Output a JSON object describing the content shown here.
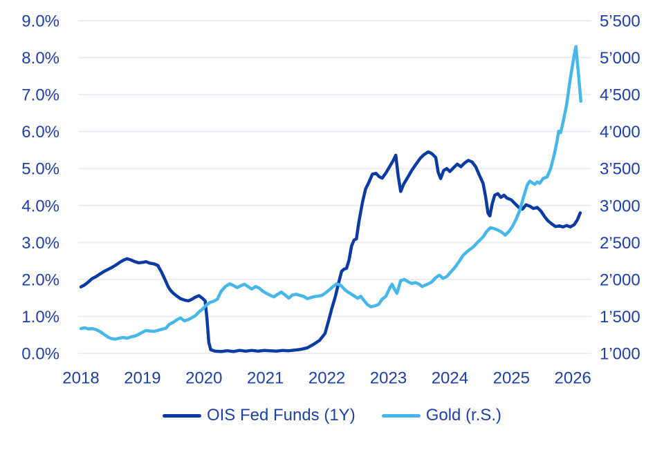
{
  "colors": {
    "axis_text": "#1e40a8",
    "gridline": "#e9edf4",
    "ois_line": "#0c3aa3",
    "gold_line": "#47b6e8",
    "background": "#ffffff"
  },
  "chart_data": {
    "type": "line",
    "title": "",
    "grid": "horizontal",
    "legend_position": "bottom",
    "x_axis": {
      "tick_labels": [
        "2018",
        "2019",
        "2020",
        "2021",
        "2022",
        "2023",
        "2024",
        "2025",
        "2026"
      ],
      "range": [
        2017.95,
        2026.3
      ]
    },
    "y_axis_left": {
      "tick_labels": [
        "9.0%",
        "8.0%",
        "7.0%",
        "6.0%",
        "5.0%",
        "4.0%",
        "3.0%",
        "2.0%",
        "1.0%",
        "0.0%"
      ],
      "range": [
        0,
        9
      ],
      "unit": "percent"
    },
    "y_axis_right": {
      "tick_labels": [
        "5’500",
        "5’000",
        "4’500",
        "4’000",
        "3’500",
        "3’000",
        "2’500",
        "2’000",
        "1’500",
        "1’000"
      ],
      "range": [
        1000,
        5500
      ]
    },
    "series": [
      {
        "id": "ois",
        "name": "OIS Fed Funds (1Y)",
        "axis": "left",
        "color": "#0c3aa3",
        "points": [
          [
            2018.0,
            1.8
          ],
          [
            2018.06,
            1.85
          ],
          [
            2018.12,
            1.93
          ],
          [
            2018.18,
            2.02
          ],
          [
            2018.25,
            2.08
          ],
          [
            2018.31,
            2.15
          ],
          [
            2018.38,
            2.22
          ],
          [
            2018.44,
            2.27
          ],
          [
            2018.5,
            2.32
          ],
          [
            2018.56,
            2.38
          ],
          [
            2018.62,
            2.45
          ],
          [
            2018.69,
            2.52
          ],
          [
            2018.75,
            2.56
          ],
          [
            2018.81,
            2.53
          ],
          [
            2018.88,
            2.48
          ],
          [
            2018.94,
            2.45
          ],
          [
            2019.0,
            2.46
          ],
          [
            2019.06,
            2.48
          ],
          [
            2019.12,
            2.44
          ],
          [
            2019.19,
            2.42
          ],
          [
            2019.25,
            2.38
          ],
          [
            2019.31,
            2.2
          ],
          [
            2019.38,
            1.95
          ],
          [
            2019.42,
            1.8
          ],
          [
            2019.46,
            1.7
          ],
          [
            2019.5,
            1.63
          ],
          [
            2019.56,
            1.55
          ],
          [
            2019.62,
            1.48
          ],
          [
            2019.69,
            1.44
          ],
          [
            2019.75,
            1.42
          ],
          [
            2019.8,
            1.46
          ],
          [
            2019.86,
            1.52
          ],
          [
            2019.92,
            1.56
          ],
          [
            2019.97,
            1.5
          ],
          [
            2020.02,
            1.42
          ],
          [
            2020.05,
            0.95
          ],
          [
            2020.08,
            0.3
          ],
          [
            2020.11,
            0.1
          ],
          [
            2020.18,
            0.06
          ],
          [
            2020.28,
            0.05
          ],
          [
            2020.38,
            0.07
          ],
          [
            2020.48,
            0.05
          ],
          [
            2020.58,
            0.08
          ],
          [
            2020.68,
            0.06
          ],
          [
            2020.78,
            0.08
          ],
          [
            2020.88,
            0.06
          ],
          [
            2020.98,
            0.08
          ],
          [
            2021.08,
            0.07
          ],
          [
            2021.18,
            0.06
          ],
          [
            2021.28,
            0.08
          ],
          [
            2021.38,
            0.07
          ],
          [
            2021.48,
            0.09
          ],
          [
            2021.58,
            0.11
          ],
          [
            2021.68,
            0.15
          ],
          [
            2021.78,
            0.24
          ],
          [
            2021.88,
            0.35
          ],
          [
            2021.97,
            0.54
          ],
          [
            2022.03,
            0.9
          ],
          [
            2022.08,
            1.21
          ],
          [
            2022.14,
            1.55
          ],
          [
            2022.19,
            1.9
          ],
          [
            2022.24,
            2.22
          ],
          [
            2022.28,
            2.28
          ],
          [
            2022.32,
            2.3
          ],
          [
            2022.36,
            2.52
          ],
          [
            2022.4,
            2.9
          ],
          [
            2022.44,
            3.06
          ],
          [
            2022.48,
            3.1
          ],
          [
            2022.52,
            3.55
          ],
          [
            2022.58,
            4.1
          ],
          [
            2022.63,
            4.45
          ],
          [
            2022.68,
            4.62
          ],
          [
            2022.74,
            4.85
          ],
          [
            2022.8,
            4.87
          ],
          [
            2022.85,
            4.78
          ],
          [
            2022.9,
            4.74
          ],
          [
            2022.96,
            4.88
          ],
          [
            2023.02,
            5.05
          ],
          [
            2023.08,
            5.22
          ],
          [
            2023.12,
            5.36
          ],
          [
            2023.16,
            4.8
          ],
          [
            2023.2,
            4.38
          ],
          [
            2023.25,
            4.58
          ],
          [
            2023.31,
            4.75
          ],
          [
            2023.38,
            4.95
          ],
          [
            2023.45,
            5.12
          ],
          [
            2023.52,
            5.28
          ],
          [
            2023.58,
            5.38
          ],
          [
            2023.65,
            5.45
          ],
          [
            2023.71,
            5.4
          ],
          [
            2023.77,
            5.3
          ],
          [
            2023.81,
            4.9
          ],
          [
            2023.85,
            4.73
          ],
          [
            2023.9,
            4.95
          ],
          [
            2023.95,
            5.0
          ],
          [
            2024.0,
            4.92
          ],
          [
            2024.06,
            5.02
          ],
          [
            2024.12,
            5.12
          ],
          [
            2024.18,
            5.05
          ],
          [
            2024.24,
            5.15
          ],
          [
            2024.3,
            5.22
          ],
          [
            2024.36,
            5.18
          ],
          [
            2024.42,
            5.05
          ],
          [
            2024.48,
            4.82
          ],
          [
            2024.54,
            4.6
          ],
          [
            2024.58,
            4.25
          ],
          [
            2024.62,
            3.8
          ],
          [
            2024.65,
            3.72
          ],
          [
            2024.69,
            4.05
          ],
          [
            2024.73,
            4.28
          ],
          [
            2024.78,
            4.32
          ],
          [
            2024.83,
            4.22
          ],
          [
            2024.88,
            4.28
          ],
          [
            2024.93,
            4.2
          ],
          [
            2025.0,
            4.15
          ],
          [
            2025.06,
            4.05
          ],
          [
            2025.12,
            3.95
          ],
          [
            2025.18,
            3.9
          ],
          [
            2025.24,
            4.02
          ],
          [
            2025.3,
            3.98
          ],
          [
            2025.36,
            3.92
          ],
          [
            2025.42,
            3.95
          ],
          [
            2025.48,
            3.85
          ],
          [
            2025.54,
            3.7
          ],
          [
            2025.6,
            3.58
          ],
          [
            2025.66,
            3.5
          ],
          [
            2025.72,
            3.43
          ],
          [
            2025.78,
            3.45
          ],
          [
            2025.84,
            3.42
          ],
          [
            2025.9,
            3.46
          ],
          [
            2025.96,
            3.42
          ],
          [
            2026.02,
            3.48
          ],
          [
            2026.07,
            3.6
          ],
          [
            2026.12,
            3.8
          ]
        ]
      },
      {
        "id": "gold",
        "name": "Gold (r.S.)",
        "axis": "right",
        "color": "#47b6e8",
        "points": [
          [
            2018.0,
            1335
          ],
          [
            2018.06,
            1345
          ],
          [
            2018.12,
            1330
          ],
          [
            2018.18,
            1335
          ],
          [
            2018.25,
            1320
          ],
          [
            2018.31,
            1295
          ],
          [
            2018.38,
            1255
          ],
          [
            2018.44,
            1220
          ],
          [
            2018.5,
            1200
          ],
          [
            2018.56,
            1192
          ],
          [
            2018.62,
            1205
          ],
          [
            2018.69,
            1215
          ],
          [
            2018.75,
            1205
          ],
          [
            2018.81,
            1222
          ],
          [
            2018.88,
            1235
          ],
          [
            2018.94,
            1258
          ],
          [
            2019.0,
            1285
          ],
          [
            2019.06,
            1310
          ],
          [
            2019.12,
            1302
          ],
          [
            2019.19,
            1298
          ],
          [
            2019.25,
            1310
          ],
          [
            2019.31,
            1325
          ],
          [
            2019.38,
            1340
          ],
          [
            2019.44,
            1395
          ],
          [
            2019.5,
            1420
          ],
          [
            2019.56,
            1455
          ],
          [
            2019.62,
            1480
          ],
          [
            2019.68,
            1440
          ],
          [
            2019.74,
            1455
          ],
          [
            2019.8,
            1480
          ],
          [
            2019.86,
            1510
          ],
          [
            2019.92,
            1560
          ],
          [
            2019.98,
            1600
          ],
          [
            2020.04,
            1655
          ],
          [
            2020.1,
            1690
          ],
          [
            2020.16,
            1705
          ],
          [
            2020.22,
            1735
          ],
          [
            2020.28,
            1840
          ],
          [
            2020.35,
            1905
          ],
          [
            2020.42,
            1940
          ],
          [
            2020.48,
            1918
          ],
          [
            2020.54,
            1890
          ],
          [
            2020.6,
            1915
          ],
          [
            2020.66,
            1935
          ],
          [
            2020.72,
            1902
          ],
          [
            2020.78,
            1870
          ],
          [
            2020.84,
            1905
          ],
          [
            2020.9,
            1882
          ],
          [
            2020.96,
            1840
          ],
          [
            2021.02,
            1810
          ],
          [
            2021.08,
            1785
          ],
          [
            2021.14,
            1765
          ],
          [
            2021.2,
            1800
          ],
          [
            2021.26,
            1830
          ],
          [
            2021.32,
            1790
          ],
          [
            2021.38,
            1748
          ],
          [
            2021.44,
            1790
          ],
          [
            2021.5,
            1800
          ],
          [
            2021.56,
            1785
          ],
          [
            2021.62,
            1772
          ],
          [
            2021.68,
            1740
          ],
          [
            2021.74,
            1755
          ],
          [
            2021.8,
            1768
          ],
          [
            2021.86,
            1775
          ],
          [
            2021.92,
            1785
          ],
          [
            2021.98,
            1820
          ],
          [
            2022.04,
            1860
          ],
          [
            2022.1,
            1905
          ],
          [
            2022.16,
            1940
          ],
          [
            2022.22,
            1925
          ],
          [
            2022.28,
            1870
          ],
          [
            2022.34,
            1830
          ],
          [
            2022.4,
            1800
          ],
          [
            2022.46,
            1768
          ],
          [
            2022.5,
            1745
          ],
          [
            2022.55,
            1772
          ],
          [
            2022.6,
            1720
          ],
          [
            2022.66,
            1658
          ],
          [
            2022.72,
            1630
          ],
          [
            2022.78,
            1642
          ],
          [
            2022.84,
            1662
          ],
          [
            2022.9,
            1735
          ],
          [
            2022.96,
            1772
          ],
          [
            2023.02,
            1880
          ],
          [
            2023.06,
            1935
          ],
          [
            2023.1,
            1865
          ],
          [
            2023.14,
            1812
          ],
          [
            2023.2,
            1985
          ],
          [
            2023.26,
            2000
          ],
          [
            2023.32,
            1970
          ],
          [
            2023.38,
            1945
          ],
          [
            2023.44,
            1958
          ],
          [
            2023.5,
            1935
          ],
          [
            2023.55,
            1905
          ],
          [
            2023.62,
            1930
          ],
          [
            2023.7,
            1962
          ],
          [
            2023.77,
            2025
          ],
          [
            2023.83,
            2058
          ],
          [
            2023.89,
            2015
          ],
          [
            2023.95,
            2040
          ],
          [
            2024.02,
            2105
          ],
          [
            2024.08,
            2160
          ],
          [
            2024.14,
            2230
          ],
          [
            2024.22,
            2330
          ],
          [
            2024.3,
            2390
          ],
          [
            2024.38,
            2440
          ],
          [
            2024.46,
            2510
          ],
          [
            2024.54,
            2575
          ],
          [
            2024.6,
            2650
          ],
          [
            2024.66,
            2700
          ],
          [
            2024.72,
            2688
          ],
          [
            2024.78,
            2668
          ],
          [
            2024.84,
            2640
          ],
          [
            2024.9,
            2600
          ],
          [
            2024.96,
            2648
          ],
          [
            2025.02,
            2720
          ],
          [
            2025.08,
            2820
          ],
          [
            2025.14,
            2940
          ],
          [
            2025.2,
            3120
          ],
          [
            2025.26,
            3280
          ],
          [
            2025.3,
            3330
          ],
          [
            2025.34,
            3308
          ],
          [
            2025.38,
            3288
          ],
          [
            2025.42,
            3318
          ],
          [
            2025.46,
            3300
          ],
          [
            2025.52,
            3368
          ],
          [
            2025.58,
            3385
          ],
          [
            2025.64,
            3500
          ],
          [
            2025.7,
            3700
          ],
          [
            2025.74,
            3858
          ],
          [
            2025.77,
            4005
          ],
          [
            2025.8,
            3985
          ],
          [
            2025.84,
            4120
          ],
          [
            2025.9,
            4370
          ],
          [
            2025.96,
            4720
          ],
          [
            2026.02,
            5025
          ],
          [
            2026.05,
            5150
          ],
          [
            2026.09,
            4790
          ],
          [
            2026.13,
            4410
          ]
        ]
      }
    ]
  },
  "legend": {
    "items": [
      {
        "label": "OIS Fed Funds (1Y)"
      },
      {
        "label": "Gold (r.S.)"
      }
    ]
  }
}
